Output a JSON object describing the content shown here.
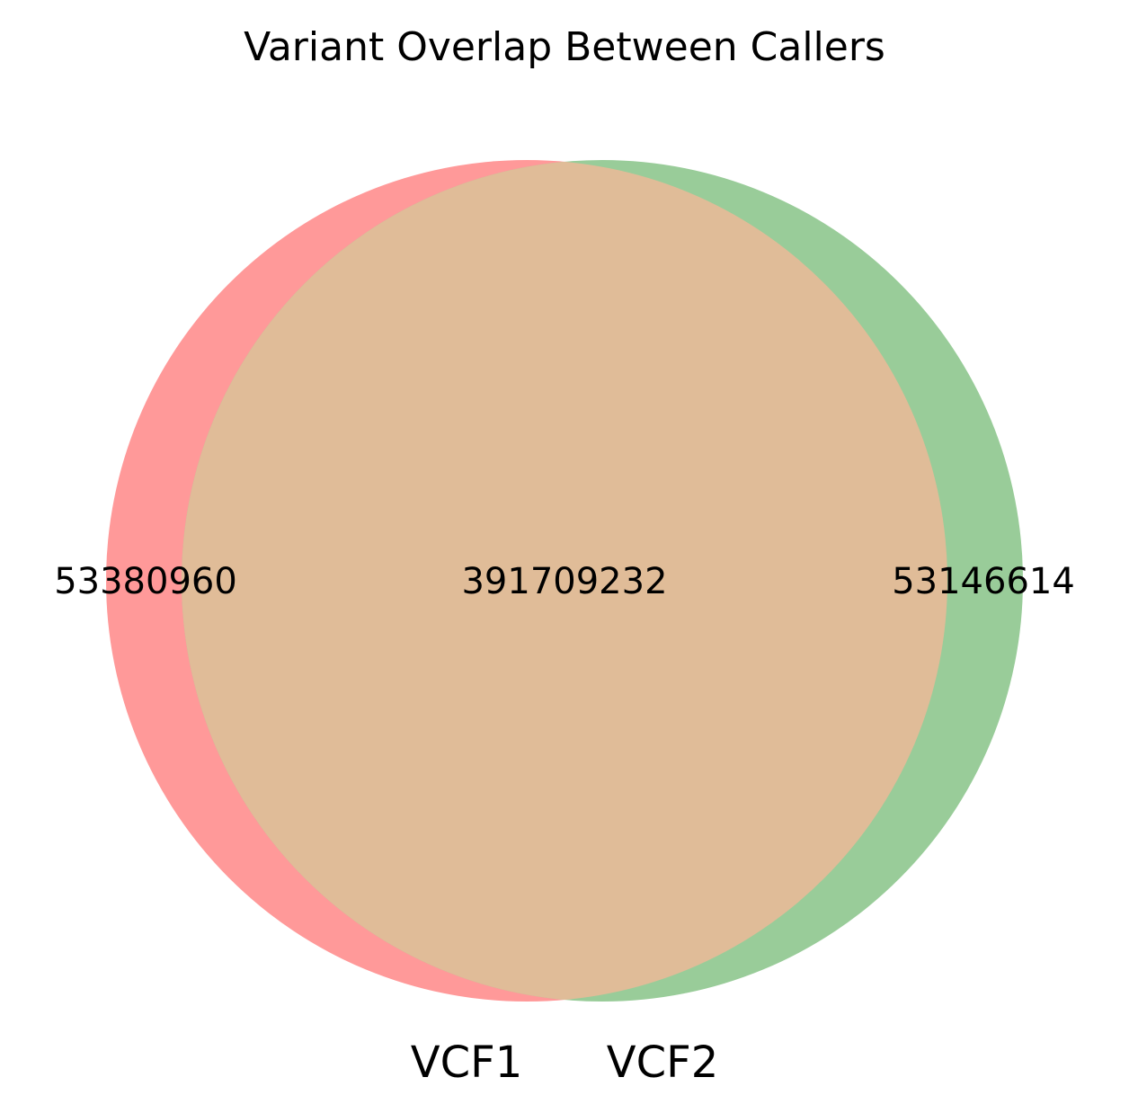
{
  "title": "Variant Overlap Between Callers",
  "chart_data": {
    "type": "venn",
    "title": "Variant Overlap Between Callers",
    "sets": [
      {
        "name": "VCF1",
        "only": 53380960,
        "color": "#ff9999"
      },
      {
        "name": "VCF2",
        "only": 53146614,
        "color": "#99cc99"
      }
    ],
    "intersection": 391709232,
    "intersection_color": "#e0bc98"
  },
  "labels": {
    "set_a_name": "VCF1",
    "set_b_name": "VCF2",
    "only_a": "53380960",
    "only_b": "53146614",
    "both": "391709232"
  }
}
